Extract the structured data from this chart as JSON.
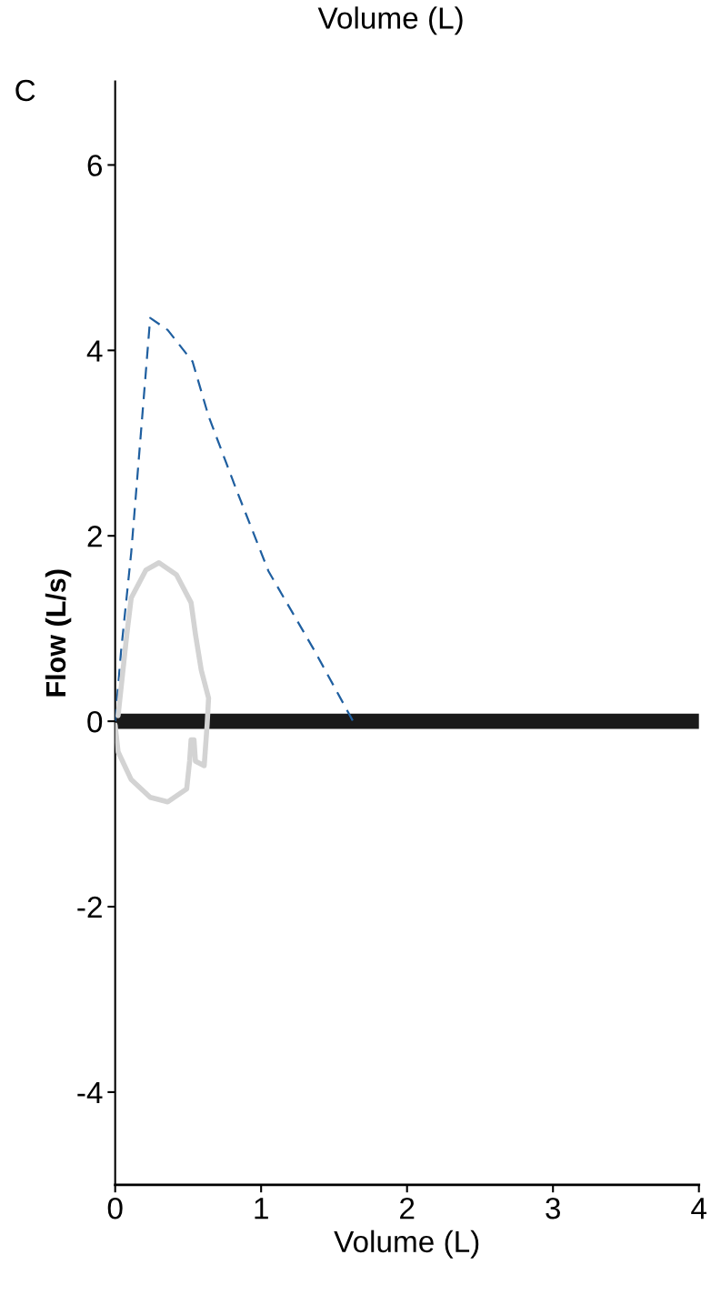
{
  "chart_data": {
    "type": "line",
    "xlabel": "Volume (L)",
    "ylabel": "Flow (L/s)",
    "annotations": [
      "Volume (L)",
      "C"
    ],
    "xlim": [
      0,
      4
    ],
    "xticks": [
      0,
      1,
      2,
      3,
      4
    ],
    "ylim": [
      -5,
      6.9
    ],
    "yticks": [
      {
        "value": -4,
        "label": "-4"
      },
      {
        "value": -2,
        "label": "-2"
      },
      0,
      2,
      4,
      6
    ],
    "grid": false,
    "legend": false,
    "marker": "none",
    "ref_lines": [
      {
        "axis": "y",
        "value": 0,
        "color": "#1a1a1a"
      }
    ],
    "series": [
      {
        "color": "#1f5fa0",
        "line_style": "dashed",
        "x": [
          0,
          0.04,
          0.11,
          0.24,
          0.36,
          0.53,
          0.64,
          0.83,
          1.05,
          1.37,
          1.63
        ],
        "values": [
          0,
          0.75,
          1.82,
          4.35,
          4.22,
          3.88,
          3.29,
          2.5,
          1.62,
          0.75,
          0
        ]
      },
      {
        "color": "#d3d3d3",
        "line_style": "solid",
        "x": [
          0.02,
          0.08,
          0.11,
          0.21,
          0.3,
          0.42,
          0.52,
          0.55,
          0.59,
          0.64,
          0.63,
          0.61,
          0.55,
          0.54,
          0.52,
          0.51,
          0.49,
          0.36,
          0.24,
          0.11,
          0.02,
          0
        ],
        "values": [
          0.06,
          0.94,
          1.33,
          1.63,
          1.71,
          1.58,
          1.28,
          0.94,
          0.55,
          0.25,
          -0.04,
          -0.48,
          -0.43,
          -0.2,
          -0.2,
          -0.43,
          -0.73,
          -0.87,
          -0.82,
          -0.63,
          -0.33,
          -0.04
        ]
      }
    ]
  }
}
